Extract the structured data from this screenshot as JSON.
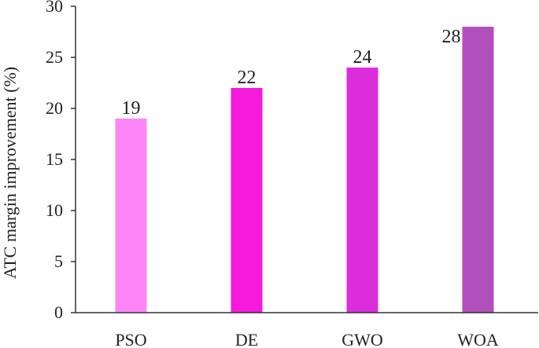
{
  "chart_data": {
    "type": "bar",
    "title": "",
    "xlabel": "",
    "ylabel": "ATC margin improvement (%)",
    "categories": [
      "PSO",
      "DE",
      "GWO",
      "WOA"
    ],
    "values": [
      19,
      22,
      24,
      28
    ],
    "value_labels": [
      "19",
      "22",
      "24",
      "28"
    ],
    "colors": [
      "#fd85f6",
      "#f61ada",
      "#dc2ddd",
      "#b34fbc"
    ],
    "ylim": [
      0,
      30
    ],
    "yticks": [
      "0",
      "5",
      "10",
      "15",
      "20",
      "25",
      "30"
    ],
    "grid": false,
    "legend": "none"
  }
}
